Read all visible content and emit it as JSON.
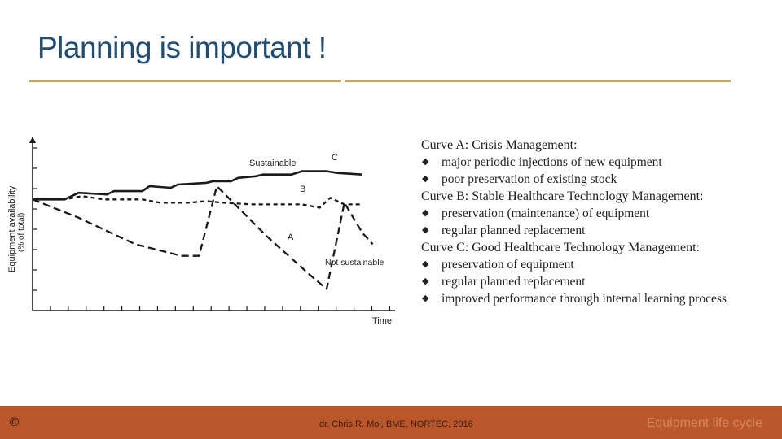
{
  "slide": {
    "title": "Planning is important !",
    "footer_symbol": "©",
    "footer_credit": "dr. Chris R. Mol, BME, NORTEC, 2016",
    "footer_topic": "Equipment life cycle"
  },
  "legend": {
    "groups": [
      {
        "header": "Curve A: Crisis Management:",
        "items": [
          "major periodic injections of new equipment",
          "poor preservation of existing stock"
        ]
      },
      {
        "header": "Curve B: Stable Healthcare Technology Management:",
        "items": [
          "preservation (maintenance) of equipment",
          "regular planned replacement"
        ]
      },
      {
        "header": "Curve C: Good Healthcare Technology Management:",
        "items": [
          "preservation of equipment",
          "regular planned replacement",
          "improved performance through internal learning process"
        ]
      }
    ]
  },
  "colors": {
    "title": "#1f4e79",
    "rule": "#e0a040",
    "footer": "#b9572b",
    "topic": "#d4875f",
    "ink": "#1a1a1a"
  },
  "chart_data": {
    "type": "line",
    "xlabel": "Time",
    "ylabel": "Equipment availability",
    "ylabel_sub": "(% of total)",
    "xlim": [
      0,
      100
    ],
    "ylim": [
      0,
      100
    ],
    "grid": false,
    "ticks": {
      "x_count": 20,
      "y_count": 8,
      "labeled": false
    },
    "series": [
      {
        "name": "C",
        "style": "solid",
        "points": [
          [
            0,
            67
          ],
          [
            9,
            67
          ],
          [
            13,
            71
          ],
          [
            21,
            70
          ],
          [
            23,
            72
          ],
          [
            31,
            72
          ],
          [
            33,
            75
          ],
          [
            39,
            74
          ],
          [
            41,
            76
          ],
          [
            49,
            77
          ],
          [
            51,
            78
          ],
          [
            56,
            78
          ],
          [
            58,
            80
          ],
          [
            63,
            81
          ],
          [
            65,
            82
          ],
          [
            73,
            82
          ],
          [
            76,
            84
          ],
          [
            83,
            84
          ],
          [
            86,
            83
          ],
          [
            93,
            82
          ]
        ]
      },
      {
        "name": "B",
        "style": "dashed",
        "points": [
          [
            0,
            67
          ],
          [
            9,
            67
          ],
          [
            14,
            69
          ],
          [
            20,
            67
          ],
          [
            24,
            67
          ],
          [
            31,
            67
          ],
          [
            36,
            65
          ],
          [
            44,
            65
          ],
          [
            49,
            66
          ],
          [
            54,
            65
          ],
          [
            62,
            64
          ],
          [
            68,
            64
          ],
          [
            76,
            64
          ],
          [
            81,
            62
          ],
          [
            84,
            68
          ],
          [
            88,
            64
          ],
          [
            93,
            64
          ]
        ]
      },
      {
        "name": "A",
        "style": "dashed",
        "points": [
          [
            0,
            67
          ],
          [
            13,
            56
          ],
          [
            29,
            40
          ],
          [
            42,
            33
          ],
          [
            47,
            33
          ],
          [
            52,
            75
          ],
          [
            66,
            45
          ],
          [
            78,
            22
          ],
          [
            83,
            13
          ],
          [
            88,
            65
          ],
          [
            93,
            47
          ],
          [
            96,
            40
          ]
        ]
      }
    ],
    "annotations": [
      "Sustainable",
      "C",
      "B",
      "A",
      "Not sustainable"
    ]
  }
}
